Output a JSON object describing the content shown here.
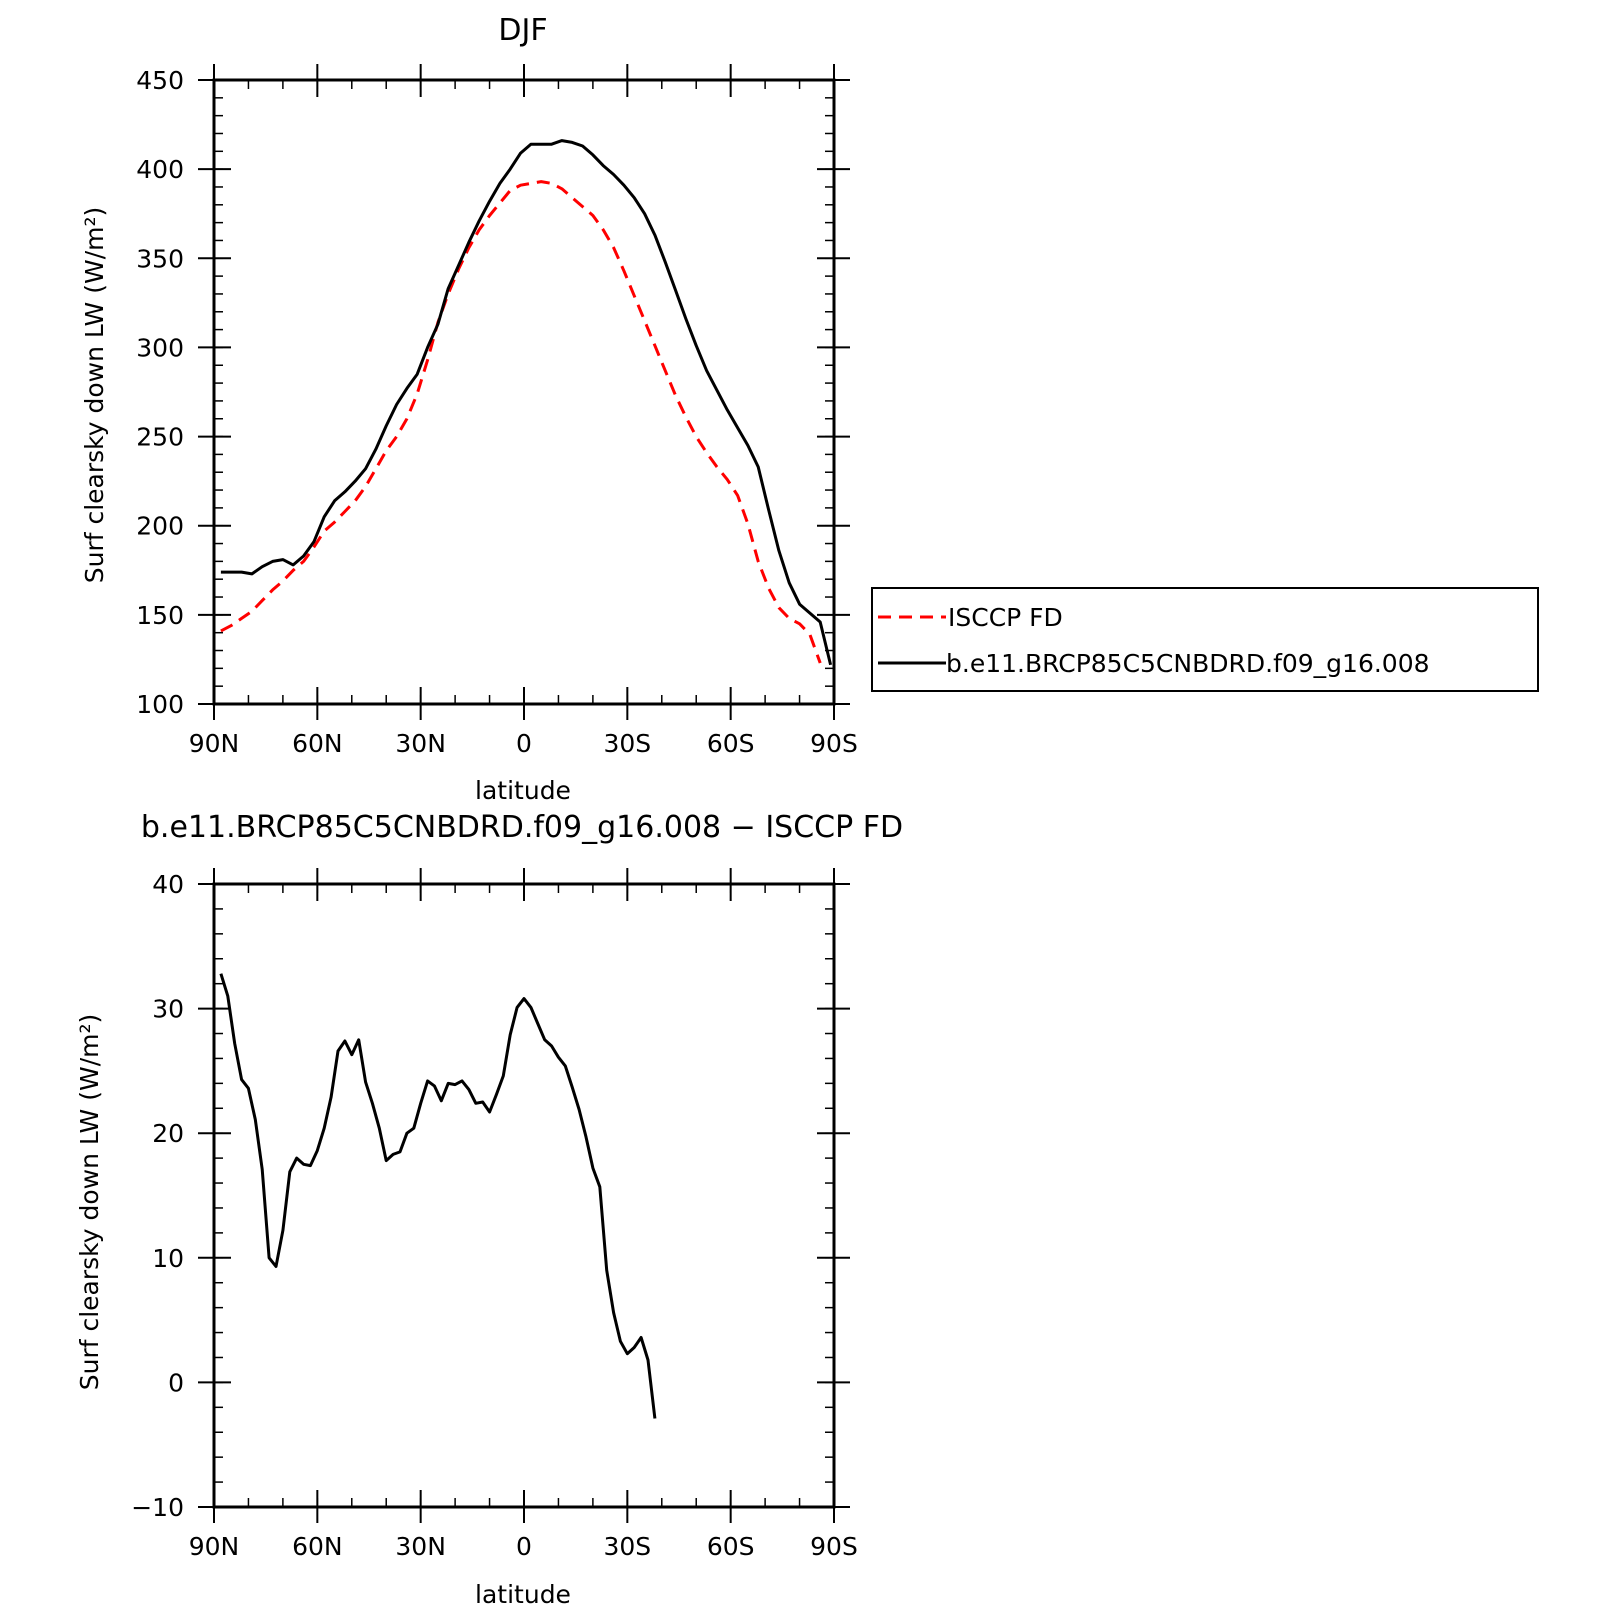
{
  "figure": {
    "top_title": "DJF",
    "bottom_title": "b.e11.BRCP85C5CNBDRD.f09_g16.008 − ISCCP FD"
  },
  "chart_data": [
    {
      "type": "line",
      "title": "DJF",
      "xlabel": "latitude",
      "ylabel": "Surf clearsky down LW (W/m²)",
      "xlim": [
        90,
        -90
      ],
      "ylim": [
        100,
        450
      ],
      "yticks": [
        100,
        150,
        200,
        250,
        300,
        350,
        400,
        450
      ],
      "yminor": 10,
      "xticks": [
        90,
        60,
        30,
        0,
        -30,
        -60,
        -90
      ],
      "xticklabels": [
        "90N",
        "60N",
        "30N",
        "0",
        "30S",
        "60S",
        "90S"
      ],
      "xminor": 10,
      "grid": false,
      "legend_position": "right",
      "series": [
        {
          "name": "ISCCP FD",
          "color": "#ff0000",
          "style": "dashed",
          "points": [
            [
              88,
              141
            ],
            [
              85,
              144
            ],
            [
              82,
              148
            ],
            [
              79,
              152
            ],
            [
              76,
              158
            ],
            [
              73,
              164
            ],
            [
              70,
              169
            ],
            [
              67,
              175
            ],
            [
              64,
              180
            ],
            [
              61,
              188
            ],
            [
              58,
              197
            ],
            [
              55,
              202
            ],
            [
              52,
              208
            ],
            [
              49,
              214
            ],
            [
              46,
              222
            ],
            [
              43,
              232
            ],
            [
              40,
              242
            ],
            [
              37,
              250
            ],
            [
              34,
              260
            ],
            [
              31,
              274
            ],
            [
              28,
              293
            ],
            [
              25,
              314
            ],
            [
              22,
              330
            ],
            [
              19,
              344
            ],
            [
              16,
              356
            ],
            [
              13,
              366
            ],
            [
              10,
              374
            ],
            [
              7,
              381
            ],
            [
              4,
              388
            ],
            [
              1,
              391
            ],
            [
              -2,
              392
            ],
            [
              -5,
              393
            ],
            [
              -8,
              392
            ],
            [
              -11,
              389
            ],
            [
              -14,
              384
            ],
            [
              -17,
              379
            ],
            [
              -20,
              374
            ],
            [
              -23,
              366
            ],
            [
              -26,
              356
            ],
            [
              -29,
              343
            ],
            [
              -32,
              329
            ],
            [
              -35,
              315
            ],
            [
              -38,
              301
            ],
            [
              -41,
              287
            ],
            [
              -44,
              273
            ],
            [
              -47,
              261
            ],
            [
              -50,
              250
            ],
            [
              -53,
              241
            ],
            [
              -56,
              233
            ],
            [
              -59,
              226
            ],
            [
              -62,
              217
            ],
            [
              -65,
              201
            ],
            [
              -68,
              180
            ],
            [
              -71,
              165
            ],
            [
              -74,
              154
            ],
            [
              -77,
              148
            ],
            [
              -80,
              145
            ],
            [
              -83,
              139
            ],
            [
              -86,
              123
            ]
          ]
        },
        {
          "name": "b.e11.BRCP85C5CNBDRD.f09_g16.008",
          "color": "#000000",
          "style": "solid",
          "points": [
            [
              88,
              174
            ],
            [
              85,
              174
            ],
            [
              82,
              174
            ],
            [
              79,
              173
            ],
            [
              76,
              177
            ],
            [
              73,
              180
            ],
            [
              70,
              181
            ],
            [
              67,
              178
            ],
            [
              64,
              183
            ],
            [
              61,
              191
            ],
            [
              58,
              205
            ],
            [
              55,
              214
            ],
            [
              52,
              219
            ],
            [
              49,
              225
            ],
            [
              46,
              232
            ],
            [
              43,
              243
            ],
            [
              40,
              256
            ],
            [
              37,
              268
            ],
            [
              34,
              277
            ],
            [
              31,
              285
            ],
            [
              28,
              300
            ],
            [
              25,
              313
            ],
            [
              22,
              333
            ],
            [
              19,
              346
            ],
            [
              16,
              359
            ],
            [
              13,
              371
            ],
            [
              10,
              382
            ],
            [
              7,
              392
            ],
            [
              4,
              400
            ],
            [
              1,
              409
            ],
            [
              -2,
              414
            ],
            [
              -5,
              414
            ],
            [
              -8,
              414
            ],
            [
              -11,
              416
            ],
            [
              -14,
              415
            ],
            [
              -17,
              413
            ],
            [
              -20,
              408
            ],
            [
              -23,
              402
            ],
            [
              -26,
              397
            ],
            [
              -29,
              391
            ],
            [
              -32,
              384
            ],
            [
              -35,
              375
            ],
            [
              -38,
              363
            ],
            [
              -41,
              348
            ],
            [
              -44,
              332
            ],
            [
              -47,
              316
            ],
            [
              -50,
              301
            ],
            [
              -53,
              287
            ],
            [
              -56,
              276
            ],
            [
              -59,
              265
            ],
            [
              -62,
              255
            ],
            [
              -65,
              245
            ],
            [
              -68,
              233
            ],
            [
              -71,
              209
            ],
            [
              -74,
              186
            ],
            [
              -77,
              168
            ],
            [
              -80,
              156
            ],
            [
              -83,
              151
            ],
            [
              -86,
              146
            ],
            [
              -89,
              122
            ]
          ]
        }
      ]
    },
    {
      "type": "line",
      "title": "b.e11.BRCP85C5CNBDRD.f09_g16.008 − ISCCP FD",
      "xlabel": "latitude",
      "ylabel": "Surf clearsky down LW (W/m²)",
      "xlim": [
        90,
        -90
      ],
      "ylim": [
        -10,
        40
      ],
      "yticks": [
        -10,
        0,
        10,
        20,
        30,
        40
      ],
      "yticklabels": [
        "−10",
        "0",
        "10",
        "20",
        "30",
        "40"
      ],
      "yminor": 2,
      "xticks": [
        90,
        60,
        30,
        0,
        -30,
        -60,
        -90
      ],
      "xticklabels": [
        "90N",
        "60N",
        "30N",
        "0",
        "30S",
        "60S",
        "90S"
      ],
      "xminor": 10,
      "grid": false,
      "series": [
        {
          "color": "#000000",
          "style": "solid",
          "points": [
            [
              88,
              32.8
            ],
            [
              86,
              31.0
            ],
            [
              84,
              27.2
            ],
            [
              82,
              24.3
            ],
            [
              80,
              23.6
            ],
            [
              78,
              21.1
            ],
            [
              76,
              17.1
            ],
            [
              74,
              10.0
            ],
            [
              72,
              9.3
            ],
            [
              70,
              12.2
            ],
            [
              68,
              16.9
            ],
            [
              66,
              18.0
            ],
            [
              64,
              17.5
            ],
            [
              62,
              17.4
            ],
            [
              60,
              18.6
            ],
            [
              58,
              20.4
            ],
            [
              56,
              22.9
            ],
            [
              54,
              26.6
            ],
            [
              52,
              27.4
            ],
            [
              50,
              26.3
            ],
            [
              48,
              27.5
            ],
            [
              46,
              24.1
            ],
            [
              44,
              22.4
            ],
            [
              42,
              20.4
            ],
            [
              40,
              17.8
            ],
            [
              38,
              18.3
            ],
            [
              36,
              18.5
            ],
            [
              34,
              20.0
            ],
            [
              32,
              20.4
            ],
            [
              30,
              22.4
            ],
            [
              28,
              24.2
            ],
            [
              26,
              23.8
            ],
            [
              24,
              22.6
            ],
            [
              22,
              24.0
            ],
            [
              20,
              23.9
            ],
            [
              18,
              24.2
            ],
            [
              16,
              23.5
            ],
            [
              14,
              22.4
            ],
            [
              12,
              22.5
            ],
            [
              10,
              21.7
            ],
            [
              8,
              23.1
            ],
            [
              6,
              24.6
            ],
            [
              4,
              27.9
            ],
            [
              2,
              30.1
            ],
            [
              0,
              30.8
            ],
            [
              -2,
              30.1
            ],
            [
              -4,
              28.8
            ],
            [
              -6,
              27.5
            ],
            [
              -8,
              27.0
            ],
            [
              -10,
              26.1
            ],
            [
              -12,
              25.4
            ],
            [
              -14,
              23.7
            ],
            [
              -16,
              21.9
            ],
            [
              -18,
              19.7
            ],
            [
              -20,
              17.2
            ],
            [
              -22,
              15.7
            ],
            [
              -24,
              9.0
            ],
            [
              -26,
              5.6
            ],
            [
              -28,
              3.3
            ],
            [
              -30,
              2.3
            ],
            [
              -32,
              2.8
            ],
            [
              -34,
              3.6
            ],
            [
              -36,
              1.8
            ],
            [
              -38,
              -2.9
            ]
          ]
        }
      ]
    }
  ]
}
